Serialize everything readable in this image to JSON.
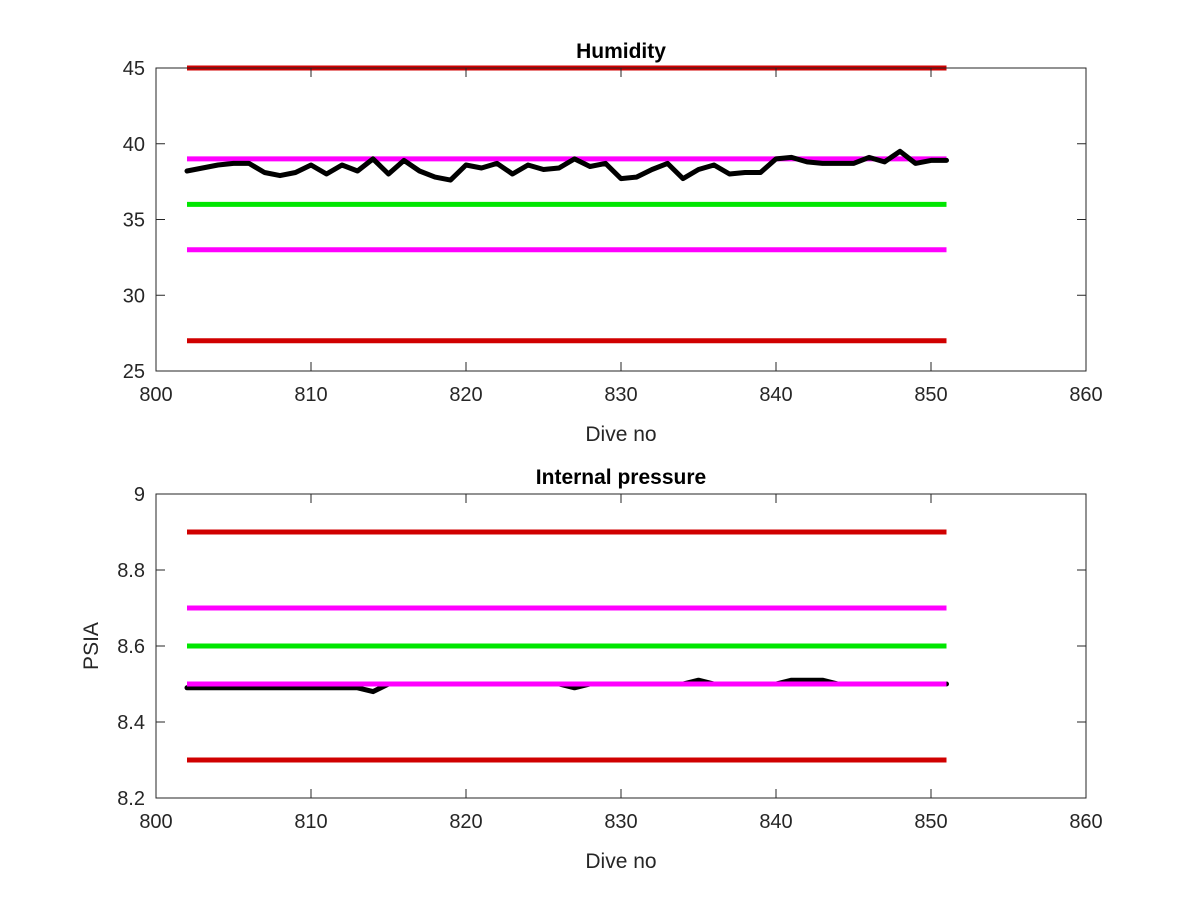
{
  "chart_data": [
    {
      "type": "line",
      "title": "Humidity",
      "xlabel": "Dive no",
      "ylabel": "",
      "xlim": [
        800,
        860
      ],
      "ylim": [
        25,
        45
      ],
      "xticks": [
        800,
        810,
        820,
        830,
        840,
        850,
        860
      ],
      "yticks": [
        25,
        30,
        35,
        40,
        45
      ],
      "x_tick_labels": [
        "800",
        "810",
        "820",
        "830",
        "840",
        "850",
        "860"
      ],
      "y_tick_labels": [
        "25",
        "30",
        "35",
        "40",
        "45"
      ],
      "grid": false,
      "series": [
        {
          "kind": "hline",
          "y": 45,
          "x_range": [
            802,
            851
          ],
          "color": "#d00000"
        },
        {
          "kind": "hline",
          "y": 27,
          "x_range": [
            802,
            851
          ],
          "color": "#d00000"
        },
        {
          "kind": "hline",
          "y": 39,
          "x_range": [
            802,
            851
          ],
          "color": "#ff00ff"
        },
        {
          "kind": "hline",
          "y": 33,
          "x_range": [
            802,
            851
          ],
          "color": "#ff00ff"
        },
        {
          "kind": "hline",
          "y": 36,
          "x_range": [
            802,
            851
          ],
          "color": "#00e600"
        },
        {
          "kind": "line",
          "color": "#000000",
          "x": [
            802,
            803,
            804,
            805,
            806,
            807,
            808,
            809,
            810,
            811,
            812,
            813,
            814,
            815,
            816,
            817,
            818,
            819,
            820,
            821,
            822,
            823,
            824,
            825,
            826,
            827,
            828,
            829,
            830,
            831,
            832,
            833,
            834,
            835,
            836,
            837,
            838,
            839,
            840,
            841,
            842,
            843,
            844,
            845,
            846,
            847,
            848,
            849,
            850,
            851
          ],
          "y": [
            38.2,
            38.4,
            38.6,
            38.7,
            38.7,
            38.1,
            37.9,
            38.1,
            38.6,
            38.0,
            38.6,
            38.2,
            39.0,
            38.0,
            38.9,
            38.2,
            37.8,
            37.6,
            38.6,
            38.4,
            38.7,
            38.0,
            38.6,
            38.3,
            38.4,
            39.0,
            38.5,
            38.7,
            37.7,
            37.8,
            38.3,
            38.7,
            37.7,
            38.3,
            38.6,
            38.0,
            38.1,
            38.1,
            39.0,
            39.1,
            38.8,
            38.7,
            38.7,
            38.7,
            39.1,
            38.8,
            39.5,
            38.7,
            38.9,
            38.9
          ]
        }
      ]
    },
    {
      "type": "line",
      "title": "Internal pressure",
      "xlabel": "Dive no",
      "ylabel": "PSIA",
      "xlim": [
        800,
        860
      ],
      "ylim": [
        8.2,
        9
      ],
      "xticks": [
        800,
        810,
        820,
        830,
        840,
        850,
        860
      ],
      "yticks": [
        8.2,
        8.4,
        8.6,
        8.8,
        9
      ],
      "x_tick_labels": [
        "800",
        "810",
        "820",
        "830",
        "840",
        "850",
        "860"
      ],
      "y_tick_labels": [
        "8.2",
        "8.4",
        "8.6",
        "8.8",
        "9"
      ],
      "grid": false,
      "series": [
        {
          "kind": "hline",
          "y": 8.9,
          "x_range": [
            802,
            851
          ],
          "color": "#d00000"
        },
        {
          "kind": "hline",
          "y": 8.3,
          "x_range": [
            802,
            851
          ],
          "color": "#d00000"
        },
        {
          "kind": "hline",
          "y": 8.7,
          "x_range": [
            802,
            851
          ],
          "color": "#ff00ff"
        },
        {
          "kind": "hline",
          "y": 8.6,
          "x_range": [
            802,
            851
          ],
          "color": "#00e600"
        },
        {
          "kind": "line",
          "color": "#000000",
          "x": [
            802,
            803,
            804,
            805,
            806,
            807,
            808,
            809,
            810,
            811,
            812,
            813,
            814,
            815,
            816,
            817,
            818,
            819,
            820,
            821,
            822,
            823,
            824,
            825,
            826,
            827,
            828,
            829,
            830,
            831,
            832,
            833,
            834,
            835,
            836,
            837,
            838,
            839,
            840,
            841,
            842,
            843,
            844,
            845,
            846,
            847,
            848,
            849,
            850,
            851
          ],
          "y": [
            8.49,
            8.49,
            8.49,
            8.49,
            8.49,
            8.49,
            8.49,
            8.49,
            8.49,
            8.49,
            8.49,
            8.49,
            8.48,
            8.5,
            8.5,
            8.5,
            8.5,
            8.5,
            8.5,
            8.5,
            8.5,
            8.5,
            8.5,
            8.5,
            8.5,
            8.49,
            8.5,
            8.5,
            8.5,
            8.5,
            8.5,
            8.5,
            8.5,
            8.51,
            8.5,
            8.5,
            8.5,
            8.5,
            8.5,
            8.51,
            8.51,
            8.51,
            8.5,
            8.5,
            8.5,
            8.5,
            8.5,
            8.5,
            8.5,
            8.5
          ]
        },
        {
          "kind": "hline",
          "y": 8.5,
          "x_range": [
            802,
            851
          ],
          "color": "#ff00ff"
        }
      ]
    }
  ]
}
